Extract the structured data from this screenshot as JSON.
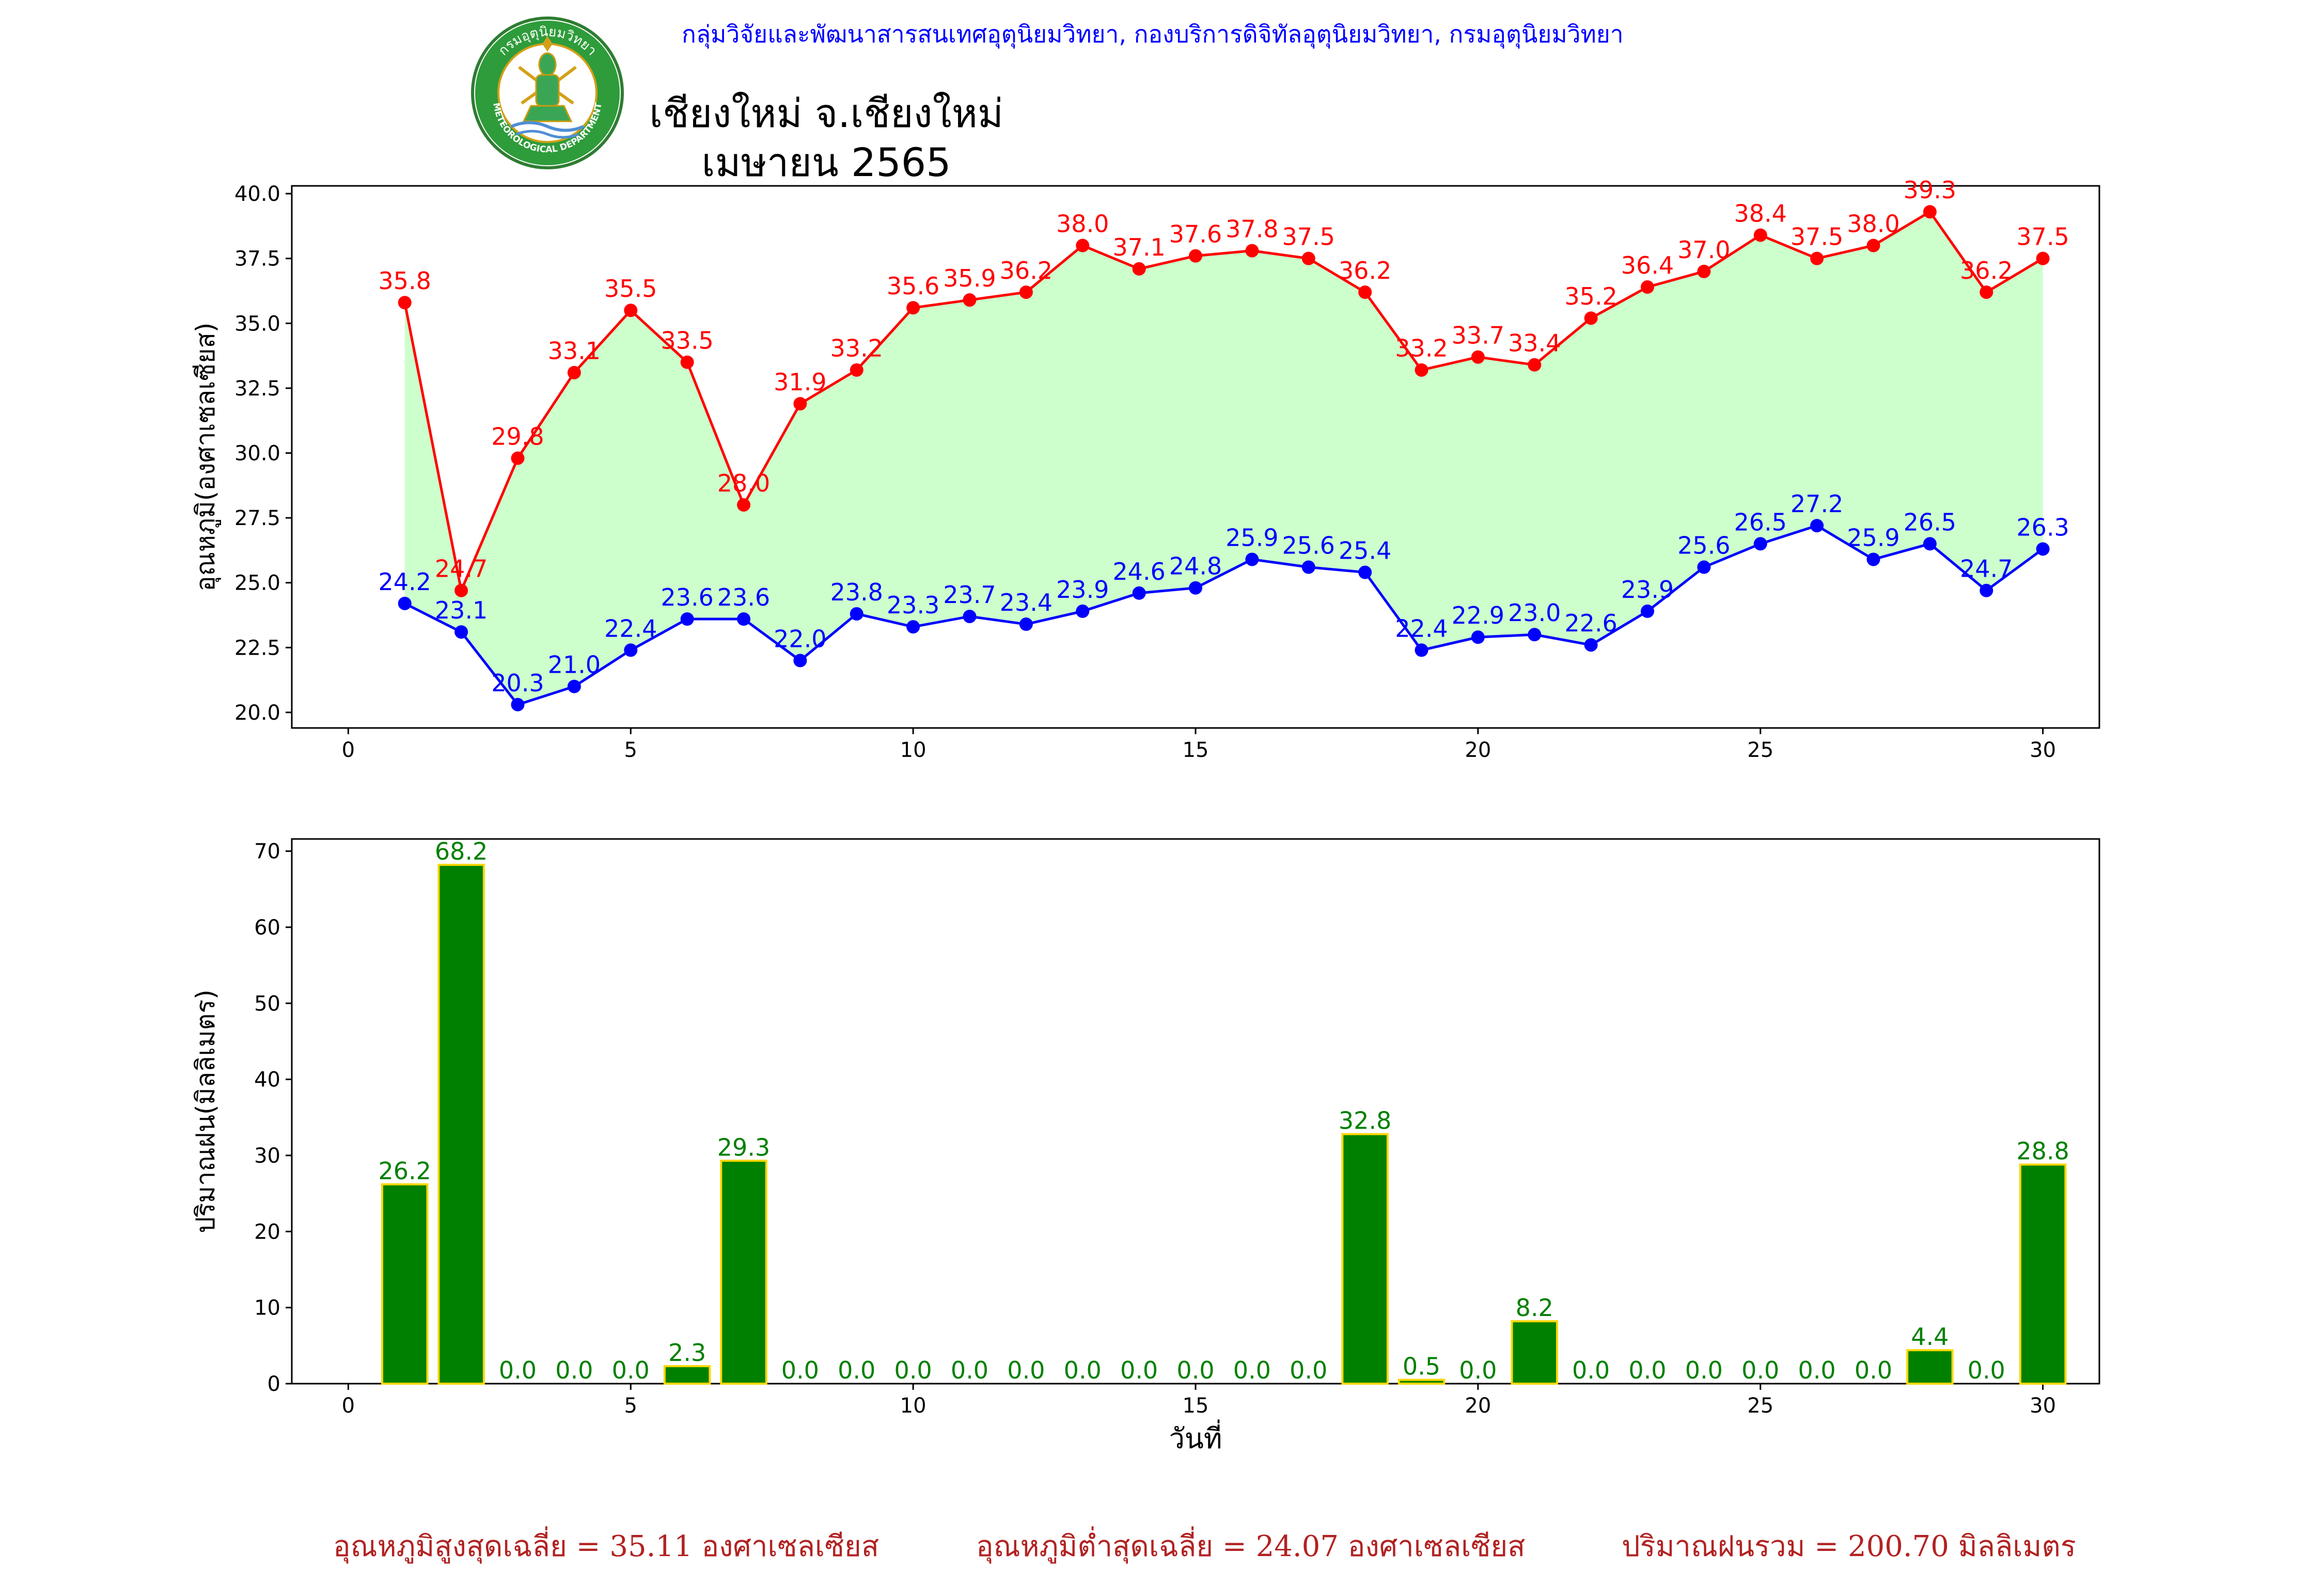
{
  "header": {
    "department_line": "กลุ่มวิจัยและพัฒนาสารสนเทศอุตุนิยมวิทยา, กองบริการดิจิทัลอุตุนิยมวิทยา, กรมอุตุนิยมวิทยา",
    "title_line1": "เชียงใหม่ จ.เชียงใหม่",
    "title_line2": "เมษายน 2565",
    "logo_top_text": "กรมอุตุนิยมวิทยา",
    "logo_bottom_text": "METEOROLOGICAL DEPARTMENT"
  },
  "colors": {
    "max_line": "#ff0000",
    "min_line": "#0000ff",
    "fill": "#ccffcc",
    "rain_bar": "#008000",
    "rain_bar_edge": "#ffd700",
    "footer_text": "#b22222",
    "header_text": "#0000ff"
  },
  "chart_data": [
    {
      "type": "line",
      "ylabel": "อุณหภูมิ(องศาเซลเซียส)",
      "xlabel": "",
      "xlim": [
        -1,
        31
      ],
      "ylim": [
        19.4,
        40.3
      ],
      "xticks": [
        0,
        5,
        10,
        15,
        20,
        25,
        30
      ],
      "yticks": [
        20.0,
        22.5,
        25.0,
        27.5,
        30.0,
        32.5,
        35.0,
        37.5,
        40.0
      ],
      "x": [
        1,
        2,
        3,
        4,
        5,
        6,
        7,
        8,
        9,
        10,
        11,
        12,
        13,
        14,
        15,
        16,
        17,
        18,
        19,
        20,
        21,
        22,
        23,
        24,
        25,
        26,
        27,
        28,
        29,
        30
      ],
      "series": [
        {
          "key": "max",
          "values": [
            35.8,
            24.7,
            29.8,
            33.1,
            35.5,
            33.5,
            28.0,
            31.9,
            33.2,
            35.6,
            35.9,
            36.2,
            38.0,
            37.1,
            37.6,
            37.8,
            37.5,
            36.2,
            33.2,
            33.7,
            33.4,
            35.2,
            36.4,
            37.0,
            38.4,
            37.5,
            38.0,
            39.3,
            36.2,
            37.5
          ]
        },
        {
          "key": "min",
          "values": [
            24.2,
            23.1,
            20.3,
            21.0,
            22.4,
            23.6,
            23.6,
            22.0,
            23.8,
            23.3,
            23.7,
            23.4,
            23.9,
            24.6,
            24.8,
            25.9,
            25.6,
            25.4,
            22.4,
            22.9,
            23.0,
            22.6,
            23.9,
            25.6,
            26.5,
            27.2,
            25.9,
            26.5,
            24.7,
            26.3
          ]
        }
      ],
      "fill_between": true,
      "grid": false
    },
    {
      "type": "bar",
      "ylabel": "ปริมาณฝน(มิลลิเมตร)",
      "xlabel": "วันที่",
      "xlim": [
        -1,
        31
      ],
      "ylim": [
        0,
        71.6
      ],
      "xticks": [
        0,
        5,
        10,
        15,
        20,
        25,
        30
      ],
      "yticks": [
        0,
        10,
        20,
        30,
        40,
        50,
        60,
        70
      ],
      "x": [
        1,
        2,
        3,
        4,
        5,
        6,
        7,
        8,
        9,
        10,
        11,
        12,
        13,
        14,
        15,
        16,
        17,
        18,
        19,
        20,
        21,
        22,
        23,
        24,
        25,
        26,
        27,
        28,
        29,
        30
      ],
      "values": [
        26.2,
        68.2,
        0.0,
        0.0,
        0.0,
        2.3,
        29.3,
        0.0,
        0.0,
        0.0,
        0.0,
        0.0,
        0.0,
        0.0,
        0.0,
        0.0,
        0.0,
        32.8,
        0.5,
        0.0,
        8.2,
        0.0,
        0.0,
        0.0,
        0.0,
        0.0,
        0.0,
        4.4,
        0.0,
        28.8
      ],
      "grid": false
    }
  ],
  "footer": {
    "avg_max": "อุณหภูมิสูงสุดเฉลี่ย = 35.11 องศาเซลเซียส",
    "avg_min": "อุณหภูมิต่ำสุดเฉลี่ย = 24.07 องศาเซลเซียส",
    "total_rain": "ปริมาณฝนรวม = 200.70 มิลลิเมตร"
  }
}
